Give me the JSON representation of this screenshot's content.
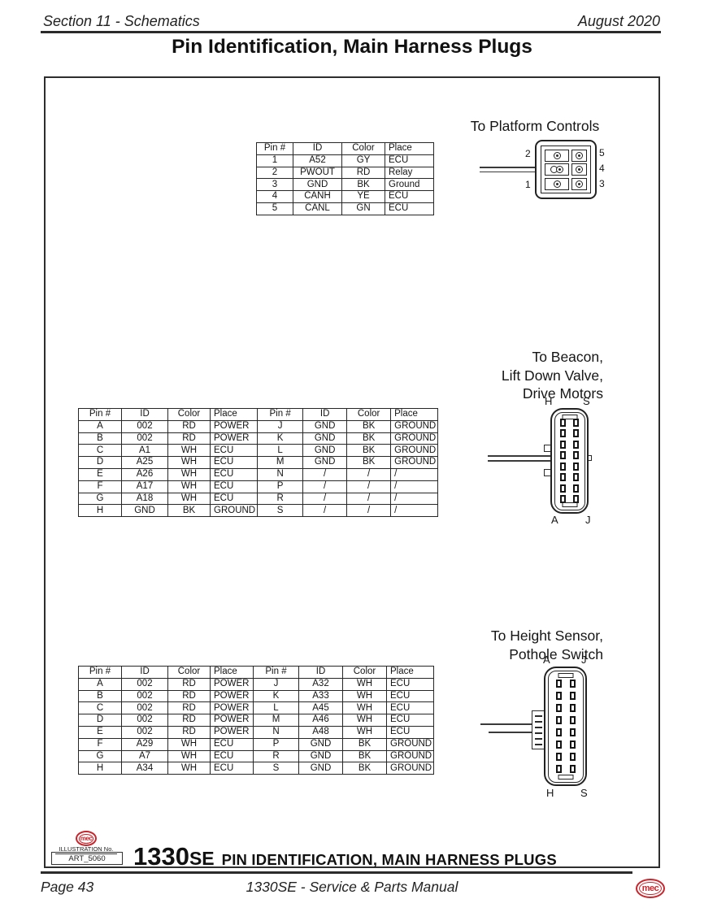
{
  "page": {
    "header_left": "Section 11 - Schematics",
    "header_right": "August 2020",
    "title": "Pin Identification, Main Harness Plugs",
    "footer_left": "Page 43",
    "footer_center": "1330SE - Service & Parts Manual",
    "logo_text": "mec",
    "colors": {
      "accent_red": "#C9252C",
      "ink": "#1c1c1c"
    }
  },
  "illustration": {
    "logo_text": "mec",
    "label": "ILLUSTRATION No.",
    "number": "ART_5060",
    "model": "1330",
    "model_suffix": "SE",
    "caption": "PIN IDENTIFICATION, MAIN HARNESS PLUGS"
  },
  "tables": {
    "platform": {
      "headers": [
        "Pin #",
        "ID",
        "Color",
        "Place"
      ],
      "rows": [
        [
          "1",
          "A52",
          "GY",
          "ECU"
        ],
        [
          "2",
          "PWOUT",
          "RD",
          "Relay"
        ],
        [
          "3",
          "GND",
          "BK",
          "Ground"
        ],
        [
          "4",
          "CANH",
          "YE",
          "ECU"
        ],
        [
          "5",
          "CANL",
          "GN",
          "ECU"
        ]
      ]
    },
    "beacon": {
      "headers": [
        "Pin #",
        "ID",
        "Color",
        "Place",
        "Pin #",
        "ID",
        "Color",
        "Place"
      ],
      "rows": [
        [
          "A",
          "002",
          "RD",
          "POWER",
          "J",
          "GND",
          "BK",
          "GROUND"
        ],
        [
          "B",
          "002",
          "RD",
          "POWER",
          "K",
          "GND",
          "BK",
          "GROUND"
        ],
        [
          "C",
          "A1",
          "WH",
          "ECU",
          "L",
          "GND",
          "BK",
          "GROUND"
        ],
        [
          "D",
          "A25",
          "WH",
          "ECU",
          "M",
          "GND",
          "BK",
          "GROUND"
        ],
        [
          "E",
          "A26",
          "WH",
          "ECU",
          "N",
          "/",
          "/",
          "/"
        ],
        [
          "F",
          "A17",
          "WH",
          "ECU",
          "P",
          "/",
          "/",
          "/"
        ],
        [
          "G",
          "A18",
          "WH",
          "ECU",
          "R",
          "/",
          "/",
          "/"
        ],
        [
          "H",
          "GND",
          "BK",
          "GROUND",
          "S",
          "/",
          "/",
          "/"
        ]
      ]
    },
    "height": {
      "headers": [
        "Pin #",
        "ID",
        "Color",
        "Place",
        "Pin #",
        "ID",
        "Color",
        "Place"
      ],
      "rows": [
        [
          "A",
          "002",
          "RD",
          "POWER",
          "J",
          "A32",
          "WH",
          "ECU"
        ],
        [
          "B",
          "002",
          "RD",
          "POWER",
          "K",
          "A33",
          "WH",
          "ECU"
        ],
        [
          "C",
          "002",
          "RD",
          "POWER",
          "L",
          "A45",
          "WH",
          "ECU"
        ],
        [
          "D",
          "002",
          "RD",
          "POWER",
          "M",
          "A46",
          "WH",
          "ECU"
        ],
        [
          "E",
          "002",
          "RD",
          "POWER",
          "N",
          "A48",
          "WH",
          "ECU"
        ],
        [
          "F",
          "A29",
          "WH",
          "ECU",
          "P",
          "GND",
          "BK",
          "GROUND"
        ],
        [
          "G",
          "A7",
          "WH",
          "ECU",
          "R",
          "GND",
          "BK",
          "GROUND"
        ],
        [
          "H",
          "A34",
          "WH",
          "ECU",
          "S",
          "GND",
          "BK",
          "GROUND"
        ]
      ]
    }
  },
  "connectors": {
    "platform": {
      "label": "To Platform Controls",
      "left_pins": [
        "2",
        "1"
      ],
      "right_pins": [
        "5",
        "4",
        "3"
      ]
    },
    "beacon": {
      "label_lines": [
        "To Beacon,",
        "Lift Down Valve,",
        "Drive Motors"
      ],
      "corner_labels": {
        "top_left": "H",
        "top_right": "S",
        "bottom_left": "A",
        "bottom_right": "J"
      }
    },
    "height": {
      "label_lines": [
        "To Height Sensor,",
        "Pothole Switch"
      ],
      "corner_labels": {
        "top_left": "A",
        "top_right": "J",
        "bottom_left": "H",
        "bottom_right": "S"
      }
    }
  }
}
